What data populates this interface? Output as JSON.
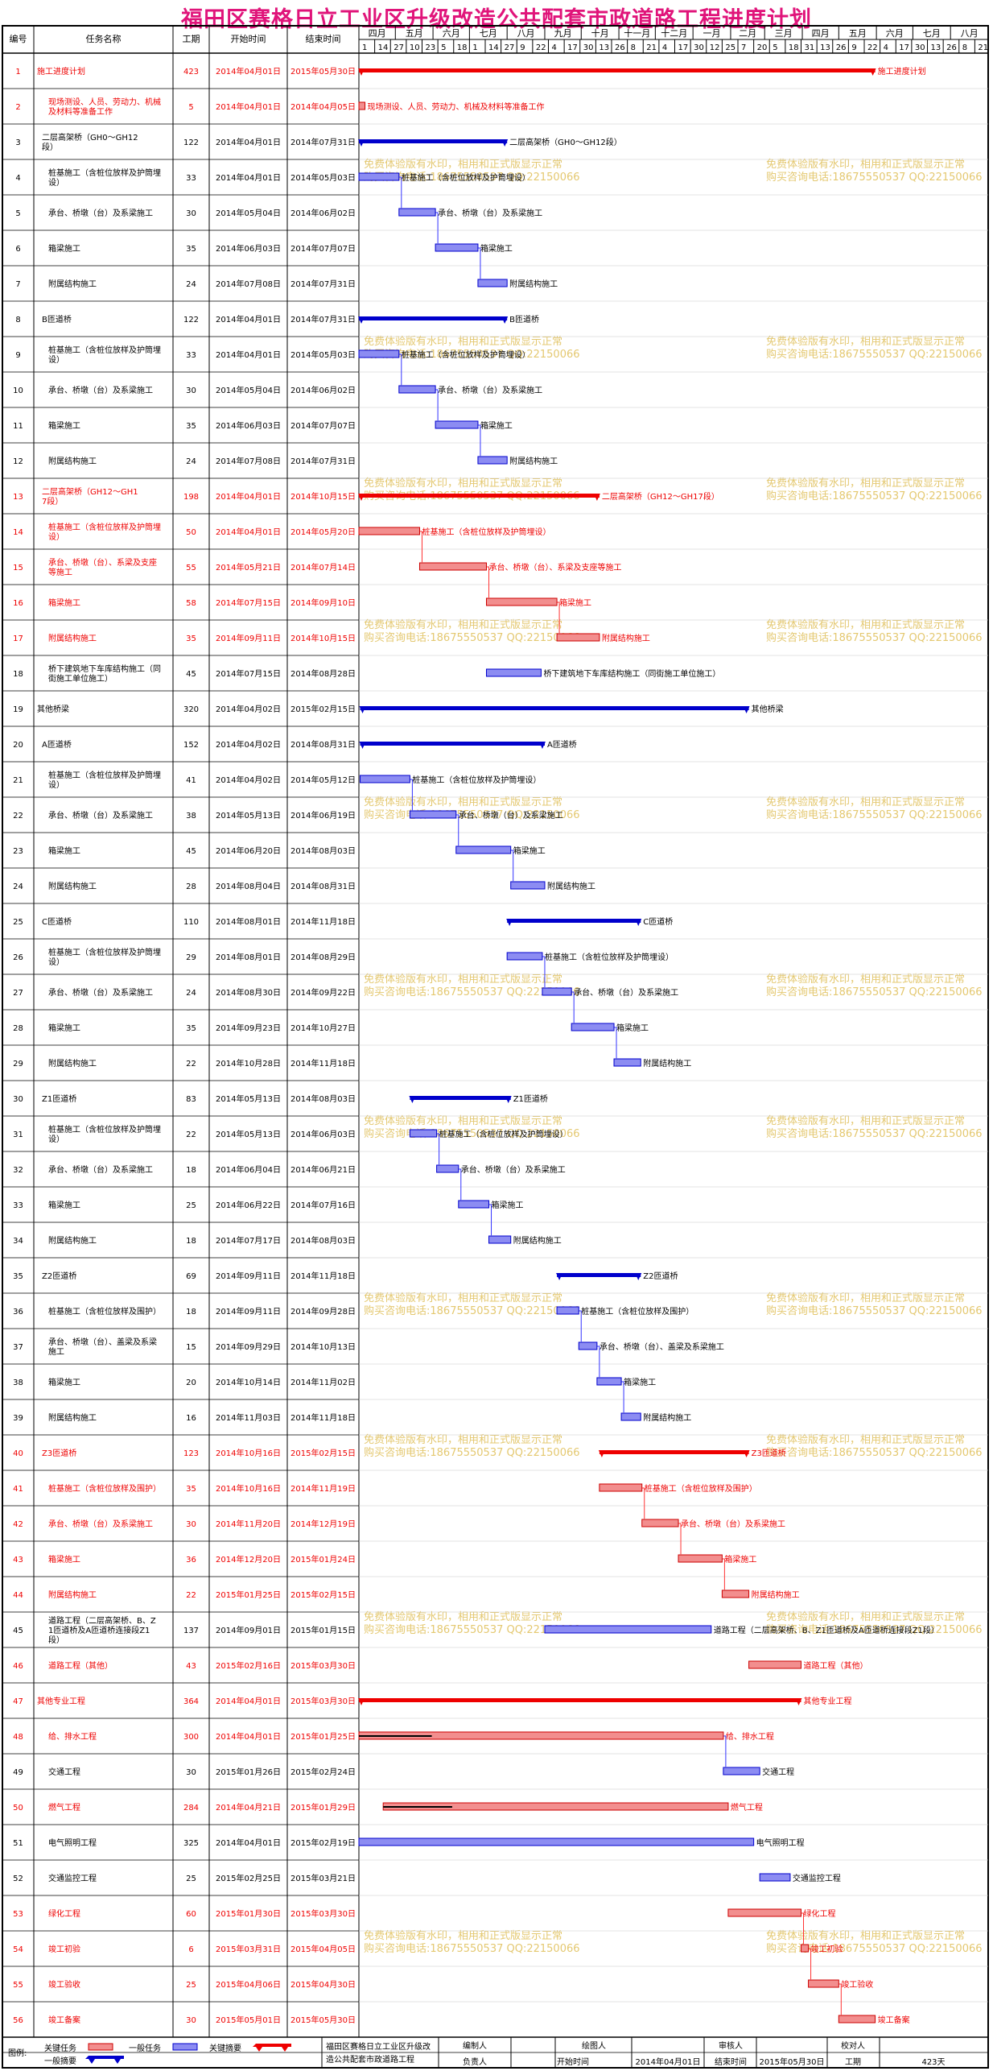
{
  "title": "福田区赛格日立工业区升级改造公共配套市政道路工程进度计划",
  "headers": {
    "id": "编号",
    "name": "任务名称",
    "dur": "工期",
    "start": "开始时间",
    "finish": "结束时间"
  },
  "months": [
    "四月",
    "五月",
    "六月",
    "七月",
    "八月",
    "九月",
    "十月",
    "十一月",
    "十二月",
    "一月",
    "二月",
    "三月",
    "四月",
    "五月",
    "六月",
    "七月",
    "八月"
  ],
  "day_ticks": [
    "1",
    "14",
    "27",
    "10",
    "23",
    "5",
    "18",
    "1",
    "14",
    "27",
    "9",
    "22",
    "4",
    "17",
    "30",
    "13",
    "26",
    "8",
    "21",
    "4",
    "17",
    "30",
    "12",
    "25",
    "7",
    "20",
    "5",
    "18",
    "31",
    "13",
    "26",
    "9",
    "22",
    "4",
    "17",
    "30",
    "13",
    "26",
    "8",
    "21"
  ],
  "watermark": {
    "line1": "免费体验版有水印，相用和正式版显示正常",
    "line2": "购买咨询电话:18675550537 QQ:22150066"
  },
  "colors": {
    "critical_bar": "#f28e8e",
    "critical_border": "#cc0000",
    "normal_bar": "#8c8cf2",
    "normal_border": "#0000cc",
    "summary_normal": "#0000cc",
    "summary_critical": "#ee0000",
    "link_red": "#ff3333",
    "link_blue": "#3333ff",
    "critical_text": "#ee0000",
    "watermark": "#e4c870"
  },
  "chart_data": {
    "type": "gantt",
    "title": "福田区赛格日立工业区升级改造公共配套市政道路工程进度计划",
    "x_axis_start": "2014-04-01",
    "x_axis_end": "2015-08-31",
    "tasks": [
      {
        "id": 1,
        "name": "施工进度计划",
        "duration": "423",
        "start": "2014年04月01日",
        "finish": "2015年05月30日",
        "s": "2014-04-01",
        "f": "2015-05-30",
        "type": "summary",
        "critical": true,
        "label": "施工进度计划"
      },
      {
        "id": 2,
        "name": "现场测设、人员、劳动力、机械及材料等准备工作",
        "duration": "5",
        "start": "2014年04月01日",
        "finish": "2014年04月05日",
        "s": "2014-04-01",
        "f": "2014-04-05",
        "type": "task",
        "critical": true,
        "label": "现场测设、人员、劳动力、机械及材料等准备工作"
      },
      {
        "id": 3,
        "name": "二层高架桥（GH0～GH12段）",
        "duration": "122",
        "start": "2014年04月01日",
        "finish": "2014年07月31日",
        "s": "2014-04-01",
        "f": "2014-07-31",
        "type": "summary",
        "critical": false,
        "label": "二层高架桥（GH0～GH12段）"
      },
      {
        "id": 4,
        "name": "桩基施工（含桩位放样及护筒埋设）",
        "duration": "33",
        "start": "2014年04月01日",
        "finish": "2014年05月03日",
        "s": "2014-04-01",
        "f": "2014-05-03",
        "type": "task",
        "critical": false,
        "label": "桩基施工（含桩位放样及护筒埋设）"
      },
      {
        "id": 5,
        "name": "承台、桥墩（台）及系梁施工",
        "duration": "30",
        "start": "2014年05月04日",
        "finish": "2014年06月02日",
        "s": "2014-05-04",
        "f": "2014-06-02",
        "type": "task",
        "critical": false,
        "label": "承台、桥墩（台）及系梁施工"
      },
      {
        "id": 6,
        "name": "箱梁施工",
        "duration": "35",
        "start": "2014年06月03日",
        "finish": "2014年07月07日",
        "s": "2014-06-03",
        "f": "2014-07-07",
        "type": "task",
        "critical": false,
        "label": "箱梁施工"
      },
      {
        "id": 7,
        "name": "附属结构施工",
        "duration": "24",
        "start": "2014年07月08日",
        "finish": "2014年07月31日",
        "s": "2014-07-08",
        "f": "2014-07-31",
        "type": "task",
        "critical": false,
        "label": "附属结构施工"
      },
      {
        "id": 8,
        "name": "B匝道桥",
        "duration": "122",
        "start": "2014年04月01日",
        "finish": "2014年07月31日",
        "s": "2014-04-01",
        "f": "2014-07-31",
        "type": "summary",
        "critical": false,
        "label": "B匝道桥"
      },
      {
        "id": 9,
        "name": "桩基施工（含桩位放样及护筒埋设）",
        "duration": "33",
        "start": "2014年04月01日",
        "finish": "2014年05月03日",
        "s": "2014-04-01",
        "f": "2014-05-03",
        "type": "task",
        "critical": false,
        "label": "桩基施工（含桩位放样及护筒埋设）"
      },
      {
        "id": 10,
        "name": "承台、桥墩（台）及系梁施工",
        "duration": "30",
        "start": "2014年05月04日",
        "finish": "2014年06月02日",
        "s": "2014-05-04",
        "f": "2014-06-02",
        "type": "task",
        "critical": false,
        "label": "承台、桥墩（台）及系梁施工"
      },
      {
        "id": 11,
        "name": "箱梁施工",
        "duration": "35",
        "start": "2014年06月03日",
        "finish": "2014年07月07日",
        "s": "2014-06-03",
        "f": "2014-07-07",
        "type": "task",
        "critical": false,
        "label": "箱梁施工"
      },
      {
        "id": 12,
        "name": "附属结构施工",
        "duration": "24",
        "start": "2014年07月08日",
        "finish": "2014年07月31日",
        "s": "2014-07-08",
        "f": "2014-07-31",
        "type": "task",
        "critical": false,
        "label": "附属结构施工"
      },
      {
        "id": 13,
        "name": "二层高架桥（GH12～GH17段）",
        "duration": "198",
        "start": "2014年04月01日",
        "finish": "2014年10月15日",
        "s": "2014-04-01",
        "f": "2014-10-15",
        "type": "summary",
        "critical": true,
        "label": "二层高架桥（GH12～GH17段）"
      },
      {
        "id": 14,
        "name": "桩基施工（含桩位放样及护筒埋设）",
        "duration": "50",
        "start": "2014年04月01日",
        "finish": "2014年05月20日",
        "s": "2014-04-01",
        "f": "2014-05-20",
        "type": "task",
        "critical": true,
        "label": "桩基施工（含桩位放样及护筒埋设）"
      },
      {
        "id": 15,
        "name": "承台、桥墩（台）、系梁及支座等施工",
        "duration": "55",
        "start": "2014年05月21日",
        "finish": "2014年07月14日",
        "s": "2014-05-21",
        "f": "2014-07-14",
        "type": "task",
        "critical": true,
        "label": "承台、桥墩（台）、系梁及支座等施工"
      },
      {
        "id": 16,
        "name": "箱梁施工",
        "duration": "58",
        "start": "2014年07月15日",
        "finish": "2014年09月10日",
        "s": "2014-07-15",
        "f": "2014-09-10",
        "type": "task",
        "critical": true,
        "label": "箱梁施工"
      },
      {
        "id": 17,
        "name": "附属结构施工",
        "duration": "35",
        "start": "2014年09月11日",
        "finish": "2014年10月15日",
        "s": "2014-09-11",
        "f": "2014-10-15",
        "type": "task",
        "critical": true,
        "label": "附属结构施工"
      },
      {
        "id": 18,
        "name": "桥下建筑地下车库结构施工（同街施工单位施工）",
        "duration": "45",
        "start": "2014年07月15日",
        "finish": "2014年08月28日",
        "s": "2014-07-15",
        "f": "2014-08-28",
        "type": "task",
        "critical": false,
        "label": "桥下建筑地下车库结构施工（同街施工单位施工）"
      },
      {
        "id": 19,
        "name": "其他桥梁",
        "duration": "320",
        "start": "2014年04月02日",
        "finish": "2015年02月15日",
        "s": "2014-04-02",
        "f": "2015-02-15",
        "type": "summary",
        "critical": false,
        "label": "其他桥梁"
      },
      {
        "id": 20,
        "name": "A匝道桥",
        "duration": "152",
        "start": "2014年04月02日",
        "finish": "2014年08月31日",
        "s": "2014-04-02",
        "f": "2014-08-31",
        "type": "summary",
        "critical": false,
        "label": "A匝道桥"
      },
      {
        "id": 21,
        "name": "桩基施工（含桩位放样及护筒埋设）",
        "duration": "41",
        "start": "2014年04月02日",
        "finish": "2014年05月12日",
        "s": "2014-04-02",
        "f": "2014-05-12",
        "type": "task",
        "critical": false,
        "label": "桩基施工（含桩位放样及护筒埋设）"
      },
      {
        "id": 22,
        "name": "承台、桥墩（台）及系梁施工",
        "duration": "38",
        "start": "2014年05月13日",
        "finish": "2014年06月19日",
        "s": "2014-05-13",
        "f": "2014-06-19",
        "type": "task",
        "critical": false,
        "label": "承台、桥墩（台）及系梁施工"
      },
      {
        "id": 23,
        "name": "箱梁施工",
        "duration": "45",
        "start": "2014年06月20日",
        "finish": "2014年08月03日",
        "s": "2014-06-20",
        "f": "2014-08-03",
        "type": "task",
        "critical": false,
        "label": "箱梁施工"
      },
      {
        "id": 24,
        "name": "附属结构施工",
        "duration": "28",
        "start": "2014年08月04日",
        "finish": "2014年08月31日",
        "s": "2014-08-04",
        "f": "2014-08-31",
        "type": "task",
        "critical": false,
        "label": "附属结构施工"
      },
      {
        "id": 25,
        "name": "C匝道桥",
        "duration": "110",
        "start": "2014年08月01日",
        "finish": "2014年11月18日",
        "s": "2014-08-01",
        "f": "2014-11-18",
        "type": "summary",
        "critical": false,
        "label": "C匝道桥"
      },
      {
        "id": 26,
        "name": "桩基施工（含桩位放样及护筒埋设）",
        "duration": "29",
        "start": "2014年08月01日",
        "finish": "2014年08月29日",
        "s": "2014-08-01",
        "f": "2014-08-29",
        "type": "task",
        "critical": false,
        "label": "桩基施工（含桩位放样及护筒埋设）"
      },
      {
        "id": 27,
        "name": "承台、桥墩（台）及系梁施工",
        "duration": "24",
        "start": "2014年08月30日",
        "finish": "2014年09月22日",
        "s": "2014-08-30",
        "f": "2014-09-22",
        "type": "task",
        "critical": false,
        "label": "承台、桥墩（台）及系梁施工"
      },
      {
        "id": 28,
        "name": "箱梁施工",
        "duration": "35",
        "start": "2014年09月23日",
        "finish": "2014年10月27日",
        "s": "2014-09-23",
        "f": "2014-10-27",
        "type": "task",
        "critical": false,
        "label": "箱梁施工"
      },
      {
        "id": 29,
        "name": "附属结构施工",
        "duration": "22",
        "start": "2014年10月28日",
        "finish": "2014年11月18日",
        "s": "2014-10-28",
        "f": "2014-11-18",
        "type": "task",
        "critical": false,
        "label": "附属结构施工"
      },
      {
        "id": 30,
        "name": "Z1匝道桥",
        "duration": "83",
        "start": "2014年05月13日",
        "finish": "2014年08月03日",
        "s": "2014-05-13",
        "f": "2014-08-03",
        "type": "summary",
        "critical": false,
        "label": "Z1匝道桥"
      },
      {
        "id": 31,
        "name": "桩基施工（含桩位放样及护筒埋设）",
        "duration": "22",
        "start": "2014年05月13日",
        "finish": "2014年06月03日",
        "s": "2014-05-13",
        "f": "2014-06-03",
        "type": "task",
        "critical": false,
        "label": "桩基施工（含桩位放样及护筒埋设）"
      },
      {
        "id": 32,
        "name": "承台、桥墩（台）及系梁施工",
        "duration": "18",
        "start": "2014年06月04日",
        "finish": "2014年06月21日",
        "s": "2014-06-04",
        "f": "2014-06-21",
        "type": "task",
        "critical": false,
        "label": "承台、桥墩（台）及系梁施工"
      },
      {
        "id": 33,
        "name": "箱梁施工",
        "duration": "25",
        "start": "2014年06月22日",
        "finish": "2014年07月16日",
        "s": "2014-06-22",
        "f": "2014-07-16",
        "type": "task",
        "critical": false,
        "label": "箱梁施工"
      },
      {
        "id": 34,
        "name": "附属结构施工",
        "duration": "18",
        "start": "2014年07月17日",
        "finish": "2014年08月03日",
        "s": "2014-07-17",
        "f": "2014-08-03",
        "type": "task",
        "critical": false,
        "label": "附属结构施工"
      },
      {
        "id": 35,
        "name": "Z2匝道桥",
        "duration": "69",
        "start": "2014年09月11日",
        "finish": "2014年11月18日",
        "s": "2014-09-11",
        "f": "2014-11-18",
        "type": "summary",
        "critical": false,
        "label": "Z2匝道桥"
      },
      {
        "id": 36,
        "name": "桩基施工（含桩位放样及围护）",
        "duration": "18",
        "start": "2014年09月11日",
        "finish": "2014年09月28日",
        "s": "2014-09-11",
        "f": "2014-09-28",
        "type": "task",
        "critical": false,
        "label": "桩基施工（含桩位放样及围护）"
      },
      {
        "id": 37,
        "name": "承台、桥墩（台）、盖梁及系梁施工",
        "duration": "15",
        "start": "2014年09月29日",
        "finish": "2014年10月13日",
        "s": "2014-09-29",
        "f": "2014-10-13",
        "type": "task",
        "critical": false,
        "label": "承台、桥墩（台）、盖梁及系梁施工"
      },
      {
        "id": 38,
        "name": "箱梁施工",
        "duration": "20",
        "start": "2014年10月14日",
        "finish": "2014年11月02日",
        "s": "2014-10-14",
        "f": "2014-11-02",
        "type": "task",
        "critical": false,
        "label": "箱梁施工"
      },
      {
        "id": 39,
        "name": "附属结构施工",
        "duration": "16",
        "start": "2014年11月03日",
        "finish": "2014年11月18日",
        "s": "2014-11-03",
        "f": "2014-11-18",
        "type": "task",
        "critical": false,
        "label": "附属结构施工"
      },
      {
        "id": 40,
        "name": "Z3匝道桥",
        "duration": "123",
        "start": "2014年10月16日",
        "finish": "2015年02月15日",
        "s": "2014-10-16",
        "f": "2015-02-15",
        "type": "summary",
        "critical": true,
        "label": "Z3匝道桥"
      },
      {
        "id": 41,
        "name": "桩基施工（含桩位放样及围护）",
        "duration": "35",
        "start": "2014年10月16日",
        "finish": "2014年11月19日",
        "s": "2014-10-16",
        "f": "2014-11-19",
        "type": "task",
        "critical": true,
        "label": "桩基施工（含桩位放样及围护）"
      },
      {
        "id": 42,
        "name": "承台、桥墩（台）及系梁施工",
        "duration": "30",
        "start": "2014年11月20日",
        "finish": "2014年12月19日",
        "s": "2014-11-20",
        "f": "2014-12-19",
        "type": "task",
        "critical": true,
        "label": "承台、桥墩（台）及系梁施工"
      },
      {
        "id": 43,
        "name": "箱梁施工",
        "duration": "36",
        "start": "2014年12月20日",
        "finish": "2015年01月24日",
        "s": "2014-12-20",
        "f": "2015-01-24",
        "type": "task",
        "critical": true,
        "label": "箱梁施工"
      },
      {
        "id": 44,
        "name": "附属结构施工",
        "duration": "22",
        "start": "2015年01月25日",
        "finish": "2015年02月15日",
        "s": "2015-01-25",
        "f": "2015-02-15",
        "type": "task",
        "critical": true,
        "label": "附属结构施工"
      },
      {
        "id": 45,
        "name": "道路工程（二层高架桥、B、Z1匝道桥及A匝道桥连接段Z1段）",
        "duration": "137",
        "start": "2014年09月01日",
        "finish": "2015年01月15日",
        "s": "2014-09-01",
        "f": "2015-01-15",
        "type": "task",
        "critical": false,
        "label": "道路工程（二层高架桥、B、Z1匝道桥及A匝道桥连接段Z1段）"
      },
      {
        "id": 46,
        "name": "道路工程（其他）",
        "duration": "43",
        "start": "2015年02月16日",
        "finish": "2015年03月30日",
        "s": "2015-02-16",
        "f": "2015-03-30",
        "type": "task",
        "critical": true,
        "label": "道路工程（其他）"
      },
      {
        "id": 47,
        "name": "其他专业工程",
        "duration": "364",
        "start": "2014年04月01日",
        "finish": "2015年03月30日",
        "s": "2014-04-01",
        "f": "2015-03-30",
        "type": "summary",
        "critical": true,
        "label": "其他专业工程"
      },
      {
        "id": 48,
        "name": "给、排水工程",
        "duration": "300",
        "start": "2014年04月01日",
        "finish": "2015年01月25日",
        "s": "2014-04-01",
        "f": "2015-01-25",
        "type": "task",
        "critical": true,
        "label": "给、排水工程",
        "progress": 0.2
      },
      {
        "id": 49,
        "name": "交通工程",
        "duration": "30",
        "start": "2015年01月26日",
        "finish": "2015年02月24日",
        "s": "2015-01-26",
        "f": "2015-02-24",
        "type": "task",
        "critical": false,
        "label": "交通工程"
      },
      {
        "id": 50,
        "name": "燃气工程",
        "duration": "284",
        "start": "2014年04月21日",
        "finish": "2015年01月29日",
        "s": "2014-04-21",
        "f": "2015-01-29",
        "type": "task",
        "critical": true,
        "label": "燃气工程",
        "progress": 0.2
      },
      {
        "id": 51,
        "name": "电气照明工程",
        "duration": "325",
        "start": "2014年04月01日",
        "finish": "2015年02月19日",
        "s": "2014-04-01",
        "f": "2015-02-19",
        "type": "task",
        "critical": false,
        "label": "电气照明工程"
      },
      {
        "id": 52,
        "name": "交通监控工程",
        "duration": "25",
        "start": "2015年02月25日",
        "finish": "2015年03月21日",
        "s": "2015-02-25",
        "f": "2015-03-21",
        "type": "task",
        "critical": false,
        "label": "交通监控工程"
      },
      {
        "id": 53,
        "name": "绿化工程",
        "duration": "60",
        "start": "2015年01月30日",
        "finish": "2015年03月30日",
        "s": "2015-01-30",
        "f": "2015-03-30",
        "type": "task",
        "critical": true,
        "label": "绿化工程"
      },
      {
        "id": 54,
        "name": "竣工初验",
        "duration": "6",
        "start": "2015年03月31日",
        "finish": "2015年04月05日",
        "s": "2015-03-31",
        "f": "2015-04-05",
        "type": "task",
        "critical": true,
        "label": "竣工初验"
      },
      {
        "id": 55,
        "name": "竣工验收",
        "duration": "25",
        "start": "2015年04月06日",
        "finish": "2015年04月30日",
        "s": "2015-04-06",
        "f": "2015-04-30",
        "type": "task",
        "critical": true,
        "label": "竣工验收"
      },
      {
        "id": 56,
        "name": "竣工备案",
        "duration": "30",
        "start": "2015年05月01日",
        "finish": "2015年05月30日",
        "s": "2015-05-01",
        "f": "2015-05-30",
        "type": "task",
        "critical": true,
        "label": "竣工备案"
      }
    ]
  },
  "footer": {
    "legend_label": "图例:",
    "legend_critical": "关键任务",
    "legend_normal": "一般任务",
    "legend_critical_summary": "关键摘要",
    "legend_normal_summary": "一般摘要",
    "project_name": "福田区赛格日立工业区升级改造公共配套市政道路工程",
    "editor": "编制人",
    "drawer": "绘图人",
    "reviewer": "审核人",
    "checker": "校对人",
    "owner": "负责人",
    "start_label": "开始时间",
    "start_value": "2014年04月01日",
    "finish_label": "结束时间",
    "finish_value": "2015年05月30日",
    "duration_label": "工期",
    "duration_value": "423天"
  }
}
